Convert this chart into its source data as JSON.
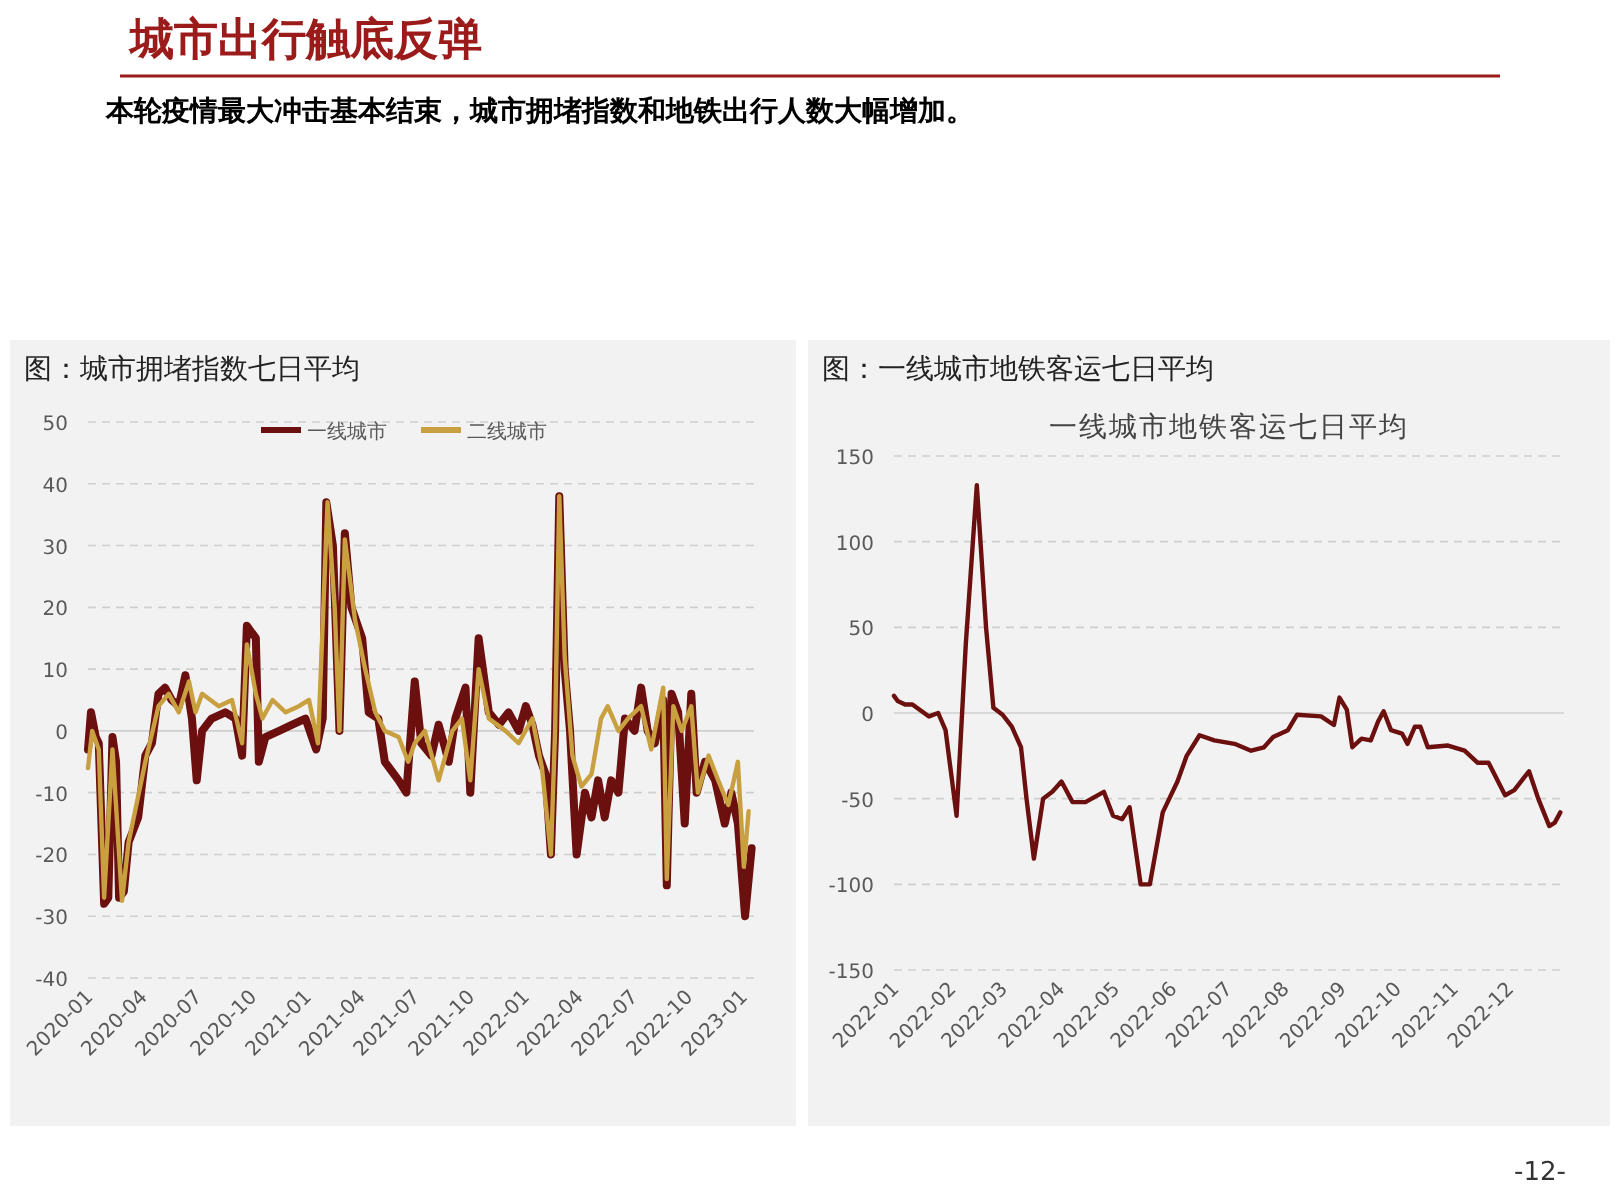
{
  "chart_data": [
    {
      "type": "other",
      "title": "城市出行触底反弹",
      "subtitle": "本轮疫情最大冲击基本结束，城市拥堵指数和地铁出行人数大幅增加。",
      "annotations": [
        "-12-"
      ]
    },
    {
      "type": "line",
      "title": "图：城市拥堵指数七日平均",
      "xlim": [
        "2020-01-01",
        "2023-01-20"
      ],
      "ylim": [
        -40,
        50
      ],
      "yticks": [
        -40,
        -30,
        -20,
        -10,
        0,
        10,
        20,
        30,
        40,
        50
      ],
      "xticks": [
        "2020-01",
        "2020-04",
        "2020-07",
        "2020-10",
        "2021-01",
        "2021-04",
        "2021-07",
        "2021-10",
        "2022-01",
        "2022-04",
        "2022-07",
        "2022-10",
        "2023-01"
      ],
      "grid": "y",
      "legend": "top",
      "line_style": "solid",
      "series": [
        {
          "name": "一线城市",
          "color": "#6b0f0f",
          "x": [
            "2020-01-01",
            "2020-01-06",
            "2020-01-14",
            "2020-01-19",
            "2020-01-28",
            "2020-02-04",
            "2020-02-11",
            "2020-02-17",
            "2020-02-22",
            "2020-03-01",
            "2020-03-09",
            "2020-03-25",
            "2020-04-06",
            "2020-04-17",
            "2020-04-28",
            "2020-05-09",
            "2020-05-20",
            "2020-06-01",
            "2020-06-12",
            "2020-06-23",
            "2020-07-01",
            "2020-07-10",
            "2020-07-26",
            "2020-08-18",
            "2020-09-04",
            "2020-09-15",
            "2020-09-23",
            "2020-10-08",
            "2020-10-13",
            "2020-10-24",
            "2020-11-16",
            "2020-12-08",
            "2020-12-30",
            "2021-01-17",
            "2021-01-28",
            "2021-02-03",
            "2021-02-14",
            "2021-02-25",
            "2021-03-06",
            "2021-03-17",
            "2021-04-04",
            "2021-04-15",
            "2021-05-01",
            "2021-05-12",
            "2021-06-04",
            "2021-06-17",
            "2021-07-01",
            "2021-07-12",
            "2021-07-29",
            "2021-08-10",
            "2021-08-27",
            "2021-09-07",
            "2021-09-24",
            "2021-10-02",
            "2021-10-16",
            "2021-11-02",
            "2021-11-19",
            "2021-12-05",
            "2021-12-22",
            "2022-01-03",
            "2022-01-14",
            "2022-01-25",
            "2022-02-05",
            "2022-02-14",
            "2022-02-21",
            "2022-02-28",
            "2022-03-09",
            "2022-03-18",
            "2022-03-29",
            "2022-04-12",
            "2022-04-23",
            "2022-05-04",
            "2022-05-15",
            "2022-05-26",
            "2022-06-07",
            "2022-06-18",
            "2022-07-04",
            "2022-07-15",
            "2022-07-26",
            "2022-08-07",
            "2022-08-21",
            "2022-08-27",
            "2022-09-04",
            "2022-09-15",
            "2022-09-26",
            "2022-10-07",
            "2022-10-16",
            "2022-10-30",
            "2022-11-16",
            "2022-12-02",
            "2022-12-13",
            "2022-12-24",
            "2023-01-05",
            "2023-01-16"
          ],
          "values": [
            -3,
            3,
            -1,
            -2,
            -28,
            -27,
            -1,
            -5,
            -27,
            -26,
            -18,
            -14,
            -4,
            -2,
            6,
            7,
            5,
            4,
            9,
            2,
            -8,
            0,
            2,
            3,
            2,
            -4,
            17,
            15,
            -5,
            -1,
            0,
            1,
            2,
            -3,
            2,
            37,
            30,
            0,
            32,
            20,
            15,
            3,
            2,
            -5,
            -8,
            -10,
            8,
            -2,
            -4,
            1,
            -5,
            2,
            7,
            -10,
            15,
            3,
            1,
            3,
            0,
            4,
            1,
            -4,
            -7,
            -20,
            0,
            38,
            10,
            0,
            -20,
            -10,
            -14,
            -8,
            -14,
            -8,
            -10,
            2,
            0,
            7,
            0,
            -2,
            5,
            -25,
            6,
            3,
            -15,
            6,
            -10,
            -5,
            -8,
            -15,
            -10,
            -15,
            -30,
            -19
          ]
        },
        {
          "name": "二线城市",
          "color": "#c9a040",
          "x": [
            "2020-01-01",
            "2020-01-08",
            "2020-01-19",
            "2020-01-28",
            "2020-02-11",
            "2020-02-27",
            "2020-03-09",
            "2020-04-06",
            "2020-04-28",
            "2020-05-15",
            "2020-06-01",
            "2020-06-18",
            "2020-06-29",
            "2020-07-10",
            "2020-08-07",
            "2020-08-29",
            "2020-09-15",
            "2020-09-23",
            "2020-10-08",
            "2020-10-19",
            "2020-11-05",
            "2020-11-27",
            "2020-12-19",
            "2021-01-05",
            "2021-01-20",
            "2021-02-05",
            "2021-02-17",
            "2021-02-25",
            "2021-03-06",
            "2021-03-23",
            "2021-04-09",
            "2021-04-26",
            "2021-05-12",
            "2021-06-04",
            "2021-06-20",
            "2021-07-01",
            "2021-07-18",
            "2021-08-10",
            "2021-09-02",
            "2021-09-18",
            "2021-10-02",
            "2021-10-16",
            "2021-11-02",
            "2021-11-30",
            "2021-12-22",
            "2022-01-14",
            "2022-01-30",
            "2022-02-14",
            "2022-02-21",
            "2022-02-28",
            "2022-03-09",
            "2022-03-22",
            "2022-04-06",
            "2022-04-23",
            "2022-05-09",
            "2022-05-20",
            "2022-06-07",
            "2022-06-23",
            "2022-07-15",
            "2022-08-01",
            "2022-08-21",
            "2022-08-27",
            "2022-09-07",
            "2022-09-21",
            "2022-10-07",
            "2022-10-18",
            "2022-11-05",
            "2022-11-21",
            "2022-12-08",
            "2022-12-24",
            "2023-01-03",
            "2023-01-11"
          ],
          "values": [
            -6,
            0,
            -3,
            -27,
            -3,
            -27.5,
            -18,
            -5,
            4,
            6,
            3,
            8,
            3,
            6,
            4,
            5,
            -2,
            14,
            6,
            2,
            5,
            3,
            4,
            5,
            -2,
            37,
            20,
            0,
            31,
            18,
            10,
            3,
            0,
            -1,
            -5,
            -2,
            0,
            -8,
            0,
            2,
            -8,
            10,
            2,
            0,
            -2,
            2,
            -6,
            -20,
            0,
            38,
            12,
            -4,
            -9,
            -7,
            2,
            4,
            0,
            2,
            4,
            -3,
            7,
            -24,
            4,
            0,
            4,
            -10,
            -4,
            -8,
            -12,
            -5,
            -22,
            -13
          ]
        }
      ]
    },
    {
      "type": "line",
      "title": "图：一线城市地铁客运七日平均",
      "subtitle": "一线城市地铁客运七日平均",
      "xlim": [
        "2022-01-01",
        "2022-12-31"
      ],
      "ylim": [
        -150,
        150
      ],
      "yticks": [
        -150,
        -100,
        -50,
        0,
        50,
        100,
        150
      ],
      "xticks": [
        "2022-01",
        "2022-02",
        "2022-03",
        "2022-04",
        "2022-05",
        "2022-06",
        "2022-07",
        "2022-08",
        "2022-09",
        "2022-10",
        "2022-11",
        "2022-12"
      ],
      "grid": "y",
      "line_style": "solid",
      "series": [
        {
          "color": "#6b0f0f",
          "x": [
            "2022-01-01",
            "2022-01-03",
            "2022-01-07",
            "2022-01-11",
            "2022-01-20",
            "2022-01-25",
            "2022-01-29",
            "2022-02-04",
            "2022-02-09",
            "2022-02-15",
            "2022-02-20",
            "2022-02-24",
            "2022-03-01",
            "2022-03-06",
            "2022-03-11",
            "2022-03-14",
            "2022-03-18",
            "2022-03-23",
            "2022-03-28",
            "2022-04-02",
            "2022-04-08",
            "2022-04-15",
            "2022-04-25",
            "2022-04-30",
            "2022-05-05",
            "2022-05-09",
            "2022-05-15",
            "2022-05-20",
            "2022-05-27",
            "2022-06-04",
            "2022-06-09",
            "2022-06-16",
            "2022-06-24",
            "2022-07-05",
            "2022-07-14",
            "2022-07-21",
            "2022-07-26",
            "2022-08-03",
            "2022-08-08",
            "2022-08-21",
            "2022-08-28",
            "2022-08-31",
            "2022-09-04",
            "2022-09-07",
            "2022-09-12",
            "2022-09-17",
            "2022-09-21",
            "2022-09-24",
            "2022-09-28",
            "2022-10-04",
            "2022-10-07",
            "2022-10-11",
            "2022-10-14",
            "2022-10-18",
            "2022-10-29",
            "2022-11-07",
            "2022-11-14",
            "2022-11-20",
            "2022-11-29",
            "2022-12-04",
            "2022-12-12",
            "2022-12-17",
            "2022-12-23",
            "2022-12-26",
            "2022-12-29"
          ],
          "values": [
            10,
            7,
            5,
            5,
            -2,
            0,
            -10,
            -60,
            40,
            133,
            50,
            3,
            -1,
            -8,
            -20,
            -50,
            -85,
            -50,
            -46,
            -40,
            -52,
            -52,
            -46,
            -60,
            -62,
            -55,
            -100,
            -100,
            -58,
            -40,
            -25,
            -13,
            -16,
            -18,
            -22,
            -20,
            -14,
            -10,
            -1,
            -2,
            -7,
            9,
            2,
            -20,
            -15,
            -16,
            -5,
            1,
            -10,
            -12,
            -18,
            -8,
            -8,
            -20,
            -19,
            -22,
            -29,
            -29,
            -48,
            -45,
            -34,
            -50,
            -66,
            -64,
            -58
          ]
        }
      ]
    }
  ]
}
